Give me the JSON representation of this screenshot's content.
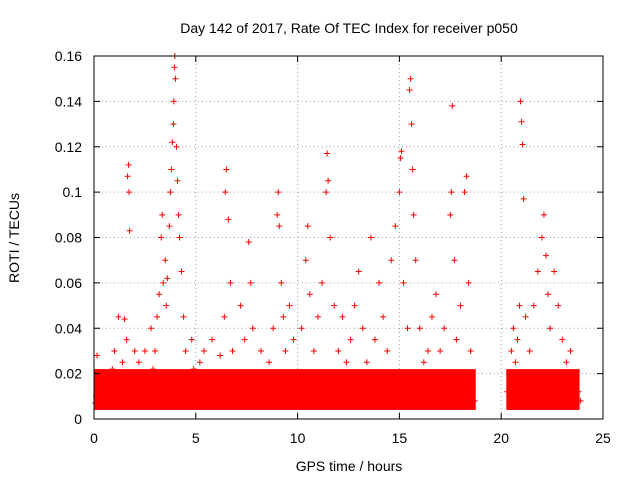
{
  "chart_data": {
    "type": "scatter",
    "title": "Day 142 of 2017, Rate Of TEC Index for receiver p050",
    "xlabel": "GPS time / hours",
    "ylabel": "ROTI / TECUs",
    "xlim": [
      0,
      25
    ],
    "ylim": [
      0,
      0.16
    ],
    "x_ticks": [
      "0",
      "5",
      "10",
      "15",
      "20",
      "25"
    ],
    "y_ticks": [
      "0",
      "0.02",
      "0.04",
      "0.06",
      "0.08",
      "0.1",
      "0.12",
      "0.14",
      "0.16"
    ],
    "x_tick_values": [
      0,
      5,
      10,
      15,
      20,
      25
    ],
    "y_tick_values": [
      0,
      0.02,
      0.04,
      0.06,
      0.08,
      0.1,
      0.12,
      0.14,
      0.16
    ],
    "grid": true,
    "marker": "+",
    "color": "#ff0000",
    "series": [
      {
        "points": [
          [
            0.05,
            0.007
          ],
          [
            0.1,
            0.01
          ],
          [
            0.15,
            0.028
          ],
          [
            0.2,
            0.02
          ],
          [
            0.3,
            0.012
          ],
          [
            0.4,
            0.009
          ],
          [
            0.5,
            0.015
          ],
          [
            0.6,
            0.011
          ],
          [
            0.7,
            0.018
          ],
          [
            0.8,
            0.013
          ],
          [
            0.9,
            0.022
          ],
          [
            1.0,
            0.03
          ],
          [
            1.1,
            0.019
          ],
          [
            1.2,
            0.045
          ],
          [
            1.3,
            0.014
          ],
          [
            1.4,
            0.025
          ],
          [
            1.5,
            0.044
          ],
          [
            1.6,
            0.035
          ],
          [
            1.65,
            0.107
          ],
          [
            1.7,
            0.112
          ],
          [
            1.72,
            0.1
          ],
          [
            1.75,
            0.083
          ],
          [
            1.8,
            0.02
          ],
          [
            1.9,
            0.012
          ],
          [
            2.0,
            0.03
          ],
          [
            2.1,
            0.016
          ],
          [
            2.2,
            0.025
          ],
          [
            2.3,
            0.011
          ],
          [
            2.4,
            0.02
          ],
          [
            2.5,
            0.03
          ],
          [
            2.6,
            0.014
          ],
          [
            2.7,
            0.018
          ],
          [
            2.8,
            0.04
          ],
          [
            2.9,
            0.022
          ],
          [
            3.0,
            0.03
          ],
          [
            3.1,
            0.045
          ],
          [
            3.2,
            0.055
          ],
          [
            3.3,
            0.08
          ],
          [
            3.35,
            0.09
          ],
          [
            3.4,
            0.06
          ],
          [
            3.5,
            0.07
          ],
          [
            3.55,
            0.05
          ],
          [
            3.6,
            0.062
          ],
          [
            3.7,
            0.085
          ],
          [
            3.75,
            0.1
          ],
          [
            3.8,
            0.11
          ],
          [
            3.85,
            0.122
          ],
          [
            3.9,
            0.13
          ],
          [
            3.92,
            0.14
          ],
          [
            3.95,
            0.155
          ],
          [
            3.97,
            0.16
          ],
          [
            4.0,
            0.15
          ],
          [
            4.05,
            0.12
          ],
          [
            4.1,
            0.105
          ],
          [
            4.15,
            0.09
          ],
          [
            4.2,
            0.08
          ],
          [
            4.3,
            0.065
          ],
          [
            4.4,
            0.045
          ],
          [
            4.5,
            0.03
          ],
          [
            4.6,
            0.02
          ],
          [
            4.7,
            0.015
          ],
          [
            4.8,
            0.035
          ],
          [
            4.9,
            0.022
          ],
          [
            5.0,
            0.012
          ],
          [
            5.2,
            0.025
          ],
          [
            5.4,
            0.03
          ],
          [
            5.6,
            0.015
          ],
          [
            5.8,
            0.035
          ],
          [
            6.0,
            0.02
          ],
          [
            6.2,
            0.028
          ],
          [
            6.4,
            0.045
          ],
          [
            6.45,
            0.1
          ],
          [
            6.5,
            0.11
          ],
          [
            6.6,
            0.088
          ],
          [
            6.7,
            0.06
          ],
          [
            6.8,
            0.03
          ],
          [
            7.0,
            0.02
          ],
          [
            7.2,
            0.05
          ],
          [
            7.4,
            0.035
          ],
          [
            7.6,
            0.078
          ],
          [
            7.7,
            0.06
          ],
          [
            7.8,
            0.04
          ],
          [
            8.0,
            0.02
          ],
          [
            8.2,
            0.03
          ],
          [
            8.4,
            0.015
          ],
          [
            8.6,
            0.025
          ],
          [
            8.8,
            0.04
          ],
          [
            9.0,
            0.09
          ],
          [
            9.05,
            0.1
          ],
          [
            9.1,
            0.085
          ],
          [
            9.2,
            0.06
          ],
          [
            9.3,
            0.045
          ],
          [
            9.4,
            0.03
          ],
          [
            9.6,
            0.05
          ],
          [
            9.8,
            0.035
          ],
          [
            10.0,
            0.02
          ],
          [
            10.2,
            0.04
          ],
          [
            10.4,
            0.07
          ],
          [
            10.5,
            0.085
          ],
          [
            10.6,
            0.055
          ],
          [
            10.8,
            0.03
          ],
          [
            11.0,
            0.045
          ],
          [
            11.2,
            0.06
          ],
          [
            11.4,
            0.1
          ],
          [
            11.45,
            0.117
          ],
          [
            11.5,
            0.105
          ],
          [
            11.6,
            0.08
          ],
          [
            11.8,
            0.05
          ],
          [
            12.0,
            0.03
          ],
          [
            12.2,
            0.045
          ],
          [
            12.4,
            0.025
          ],
          [
            12.6,
            0.035
          ],
          [
            12.8,
            0.05
          ],
          [
            13.0,
            0.065
          ],
          [
            13.2,
            0.04
          ],
          [
            13.4,
            0.025
          ],
          [
            13.6,
            0.08
          ],
          [
            13.8,
            0.035
          ],
          [
            14.0,
            0.06
          ],
          [
            14.2,
            0.045
          ],
          [
            14.4,
            0.03
          ],
          [
            14.6,
            0.07
          ],
          [
            14.8,
            0.085
          ],
          [
            15.0,
            0.1
          ],
          [
            15.05,
            0.115
          ],
          [
            15.1,
            0.118
          ],
          [
            15.2,
            0.06
          ],
          [
            15.4,
            0.04
          ],
          [
            15.5,
            0.145
          ],
          [
            15.55,
            0.15
          ],
          [
            15.6,
            0.13
          ],
          [
            15.65,
            0.11
          ],
          [
            15.7,
            0.09
          ],
          [
            15.8,
            0.07
          ],
          [
            16.0,
            0.04
          ],
          [
            16.2,
            0.025
          ],
          [
            16.4,
            0.03
          ],
          [
            16.6,
            0.045
          ],
          [
            16.8,
            0.055
          ],
          [
            17.0,
            0.03
          ],
          [
            17.2,
            0.04
          ],
          [
            17.4,
            0.02
          ],
          [
            17.5,
            0.09
          ],
          [
            17.55,
            0.1
          ],
          [
            17.6,
            0.138
          ],
          [
            17.7,
            0.07
          ],
          [
            17.8,
            0.035
          ],
          [
            18.0,
            0.05
          ],
          [
            18.2,
            0.1
          ],
          [
            18.3,
            0.107
          ],
          [
            18.4,
            0.06
          ],
          [
            18.5,
            0.03
          ],
          [
            18.6,
            0.015
          ],
          [
            18.7,
            0.008
          ],
          [
            20.3,
            0.012
          ],
          [
            20.4,
            0.02
          ],
          [
            20.5,
            0.03
          ],
          [
            20.6,
            0.04
          ],
          [
            20.7,
            0.025
          ],
          [
            20.8,
            0.035
          ],
          [
            20.9,
            0.05
          ],
          [
            20.95,
            0.14
          ],
          [
            21.0,
            0.131
          ],
          [
            21.05,
            0.121
          ],
          [
            21.1,
            0.097
          ],
          [
            21.2,
            0.045
          ],
          [
            21.4,
            0.03
          ],
          [
            21.6,
            0.05
          ],
          [
            21.8,
            0.065
          ],
          [
            22.0,
            0.08
          ],
          [
            22.1,
            0.09
          ],
          [
            22.2,
            0.072
          ],
          [
            22.3,
            0.055
          ],
          [
            22.4,
            0.04
          ],
          [
            22.6,
            0.065
          ],
          [
            22.8,
            0.05
          ],
          [
            23.0,
            0.035
          ],
          [
            23.2,
            0.025
          ],
          [
            23.4,
            0.03
          ],
          [
            23.6,
            0.02
          ],
          [
            23.8,
            0.012
          ],
          [
            23.9,
            0.008
          ]
        ]
      }
    ]
  }
}
